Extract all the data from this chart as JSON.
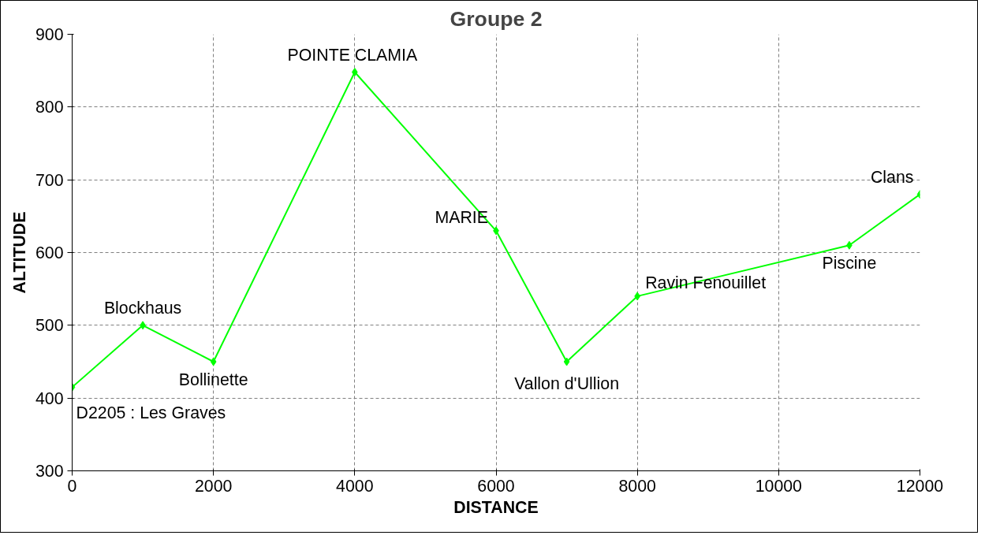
{
  "chart_data": {
    "type": "line",
    "title": "Groupe 2",
    "xlabel": "DISTANCE",
    "ylabel": "ALTITUDE",
    "x": [
      0,
      1000,
      2000,
      4000,
      6000,
      7000,
      8000,
      11000,
      12000
    ],
    "series": [
      {
        "color": "#00ff00",
        "values": [
          415,
          500,
          450,
          848,
          630,
          450,
          540,
          610,
          680
        ]
      }
    ],
    "xlim": [
      0,
      12000
    ],
    "xticks": [
      0,
      2000,
      4000,
      6000,
      8000,
      10000,
      12000
    ],
    "ylim": [
      300,
      900
    ],
    "yticks": [
      300,
      400,
      500,
      600,
      700,
      800,
      900
    ],
    "grid": true,
    "marker": "diamond",
    "line_style": "solid",
    "annotations": [
      {
        "text": "D2205 : Les Graves",
        "x": 0,
        "y": 415
      },
      {
        "text": "Blockhaus",
        "x": 1000,
        "y": 500
      },
      {
        "text": "Bollinette",
        "x": 2000,
        "y": 450
      },
      {
        "text": "POINTE  CLAMIA",
        "x": 4000,
        "y": 848
      },
      {
        "text": "MARIE",
        "x": 6000,
        "y": 630
      },
      {
        "text": "Vallon d'Ullion",
        "x": 7000,
        "y": 450
      },
      {
        "text": "Ravin Fenouillet",
        "x": 8000,
        "y": 540
      },
      {
        "text": "Piscine",
        "x": 11000,
        "y": 610
      },
      {
        "text": "Clans",
        "x": 12000,
        "y": 680
      }
    ]
  }
}
